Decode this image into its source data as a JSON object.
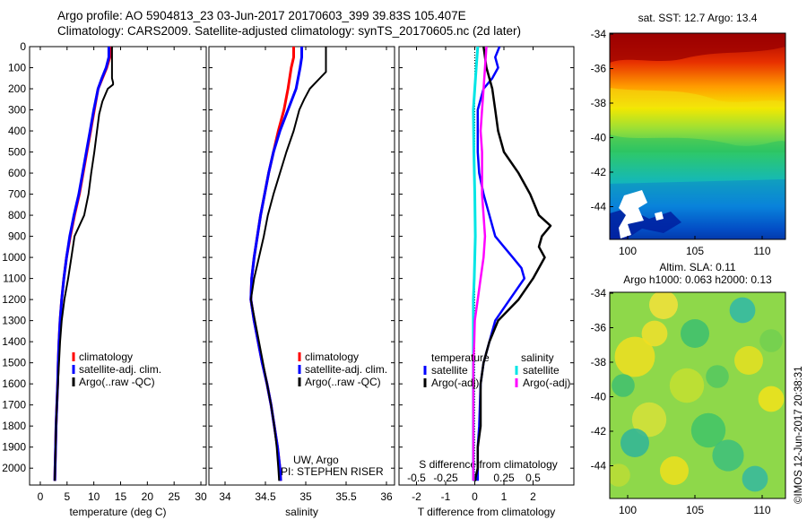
{
  "header": {
    "line1": "Argo profile: AO 5904813_23 03-Jun-2017 20170603_399 39.83S 105.407E",
    "line2": "Climatology: CARS2009. Satellite-adjusted climatology: synTS_20170605.nc (2d later)"
  },
  "colors": {
    "climatology": "#ff0000",
    "satellite": "#0000ff",
    "argo": "#000000",
    "sat_salinity": "#00e5e5",
    "argo_salinity": "#ff00ff"
  },
  "legend_labels": [
    "climatology",
    "satellite-adj. clim.",
    "Argo(..raw -QC)"
  ],
  "diff_legend": {
    "temp_title": "temperature",
    "sal_title": "salinity",
    "temp_items": [
      "satellite",
      "Argo(-adj)"
    ],
    "sal_items": [
      "satellite",
      "Argo(-adj)"
    ]
  },
  "credits": {
    "line1": "UW, Argo",
    "line2": "PI: STEPHEN RISER"
  },
  "map_sst": {
    "title": "sat. SST: 12.7 Argo: 13.4"
  },
  "map_sla": {
    "title1": "Altim. SLA: 0.11",
    "title2": "Argo h1000: 0.063 h2000: 0.13"
  },
  "stamp": "©IMOS 12-Jun-2017 20:38:31",
  "chart_data": [
    {
      "type": "line",
      "id": "temperature",
      "xlabel": "temperature (deg C)",
      "ylabel": "",
      "xlim": [
        -2,
        31
      ],
      "ylim": [
        2080,
        0
      ],
      "xticks": [
        0,
        5,
        10,
        15,
        20,
        25,
        30
      ],
      "yticks": [
        0,
        100,
        200,
        300,
        400,
        500,
        600,
        700,
        800,
        900,
        1000,
        1100,
        1200,
        1300,
        1400,
        1500,
        1600,
        1700,
        1800,
        1900,
        2000
      ],
      "series": [
        {
          "name": "climatology",
          "points": [
            [
              13.0,
              0
            ],
            [
              13.0,
              50
            ],
            [
              12.4,
              100
            ],
            [
              11.6,
              150
            ],
            [
              10.8,
              200
            ],
            [
              10.1,
              300
            ],
            [
              9.4,
              400
            ],
            [
              8.7,
              500
            ],
            [
              8.0,
              600
            ],
            [
              7.3,
              700
            ],
            [
              6.4,
              800
            ],
            [
              5.6,
              900
            ],
            [
              4.9,
              1000
            ],
            [
              4.4,
              1100
            ],
            [
              4.0,
              1200
            ],
            [
              3.7,
              1300
            ],
            [
              3.5,
              1400
            ],
            [
              3.35,
              1500
            ],
            [
              3.25,
              1600
            ],
            [
              3.1,
              1700
            ],
            [
              2.95,
              1800
            ],
            [
              2.85,
              1900
            ],
            [
              2.75,
              2000
            ],
            [
              2.7,
              2060
            ]
          ]
        },
        {
          "name": "satellite-adj. clim.",
          "points": [
            [
              12.8,
              0
            ],
            [
              12.8,
              50
            ],
            [
              12.3,
              100
            ],
            [
              11.5,
              150
            ],
            [
              10.8,
              200
            ],
            [
              10.0,
              300
            ],
            [
              9.3,
              400
            ],
            [
              8.6,
              500
            ],
            [
              7.9,
              600
            ],
            [
              7.2,
              700
            ],
            [
              6.3,
              800
            ],
            [
              5.5,
              900
            ],
            [
              4.9,
              1000
            ],
            [
              4.4,
              1100
            ],
            [
              4.0,
              1200
            ],
            [
              3.7,
              1300
            ],
            [
              3.5,
              1400
            ],
            [
              3.35,
              1500
            ],
            [
              3.25,
              1600
            ],
            [
              3.1,
              1700
            ],
            [
              2.95,
              1800
            ],
            [
              2.85,
              1900
            ],
            [
              2.75,
              2000
            ],
            [
              2.7,
              2060
            ]
          ]
        },
        {
          "name": "Argo(..raw -QC)",
          "points": [
            [
              13.4,
              0
            ],
            [
              13.4,
              150
            ],
            [
              13.6,
              170
            ],
            [
              13.6,
              180
            ],
            [
              12.6,
              200
            ],
            [
              11.6,
              260
            ],
            [
              11.0,
              320
            ],
            [
              10.6,
              400
            ],
            [
              10.1,
              500
            ],
            [
              9.5,
              600
            ],
            [
              9.0,
              700
            ],
            [
              8.2,
              800
            ],
            [
              7.3,
              850
            ],
            [
              6.4,
              900
            ],
            [
              5.8,
              1000
            ],
            [
              5.2,
              1100
            ],
            [
              4.5,
              1200
            ],
            [
              4.0,
              1300
            ],
            [
              3.7,
              1400
            ],
            [
              3.5,
              1500
            ],
            [
              3.3,
              1600
            ],
            [
              3.1,
              1700
            ],
            [
              2.95,
              1800
            ],
            [
              2.85,
              1900
            ],
            [
              2.75,
              2000
            ],
            [
              2.7,
              2060
            ]
          ]
        }
      ]
    },
    {
      "type": "line",
      "id": "salinity",
      "xlabel": "salinity",
      "ylabel": "",
      "xlim": [
        33.8,
        36.1
      ],
      "xticks": [
        34,
        34.5,
        35,
        35.5,
        36
      ],
      "series": [
        {
          "name": "climatology",
          "points": [
            [
              34.85,
              0
            ],
            [
              34.85,
              50
            ],
            [
              34.82,
              100
            ],
            [
              34.78,
              200
            ],
            [
              34.73,
              300
            ],
            [
              34.66,
              400
            ],
            [
              34.6,
              500
            ],
            [
              34.54,
              600
            ],
            [
              34.49,
              700
            ],
            [
              34.44,
              800
            ],
            [
              34.4,
              900
            ],
            [
              34.36,
              1000
            ],
            [
              34.33,
              1100
            ],
            [
              34.32,
              1200
            ],
            [
              34.36,
              1300
            ],
            [
              34.41,
              1400
            ],
            [
              34.46,
              1500
            ],
            [
              34.52,
              1600
            ],
            [
              34.57,
              1700
            ],
            [
              34.61,
              1800
            ],
            [
              34.65,
              1900
            ],
            [
              34.68,
              2000
            ],
            [
              34.69,
              2060
            ]
          ]
        },
        {
          "name": "satellite-adj. clim.",
          "points": [
            [
              34.95,
              0
            ],
            [
              34.95,
              50
            ],
            [
              34.93,
              100
            ],
            [
              34.88,
              200
            ],
            [
              34.78,
              300
            ],
            [
              34.68,
              400
            ],
            [
              34.6,
              500
            ],
            [
              34.54,
              600
            ],
            [
              34.49,
              700
            ],
            [
              34.44,
              800
            ],
            [
              34.4,
              900
            ],
            [
              34.36,
              1000
            ],
            [
              34.33,
              1100
            ],
            [
              34.32,
              1200
            ],
            [
              34.36,
              1300
            ],
            [
              34.41,
              1400
            ],
            [
              34.46,
              1500
            ],
            [
              34.52,
              1600
            ],
            [
              34.57,
              1700
            ],
            [
              34.61,
              1800
            ],
            [
              34.65,
              1900
            ],
            [
              34.68,
              2000
            ],
            [
              34.69,
              2060
            ]
          ]
        },
        {
          "name": "Argo(..raw -QC)",
          "points": [
            [
              35.25,
              0
            ],
            [
              35.25,
              120
            ],
            [
              35.15,
              160
            ],
            [
              35.05,
              200
            ],
            [
              34.98,
              250
            ],
            [
              34.92,
              300
            ],
            [
              34.85,
              400
            ],
            [
              34.76,
              500
            ],
            [
              34.68,
              600
            ],
            [
              34.6,
              700
            ],
            [
              34.53,
              800
            ],
            [
              34.48,
              900
            ],
            [
              34.42,
              1000
            ],
            [
              34.36,
              1100
            ],
            [
              34.32,
              1200
            ],
            [
              34.37,
              1300
            ],
            [
              34.42,
              1400
            ],
            [
              34.47,
              1500
            ],
            [
              34.52,
              1600
            ],
            [
              34.57,
              1700
            ],
            [
              34.61,
              1800
            ],
            [
              34.64,
              1900
            ],
            [
              34.66,
              2000
            ],
            [
              34.67,
              2060
            ]
          ]
        }
      ]
    },
    {
      "type": "line",
      "id": "difference",
      "xlabel": "T difference from climatology",
      "x2label": "S difference from climatology",
      "xlim": [
        -2.6,
        3.4
      ],
      "xticks": [
        -2,
        -1,
        0,
        1,
        2
      ],
      "x2ticks": [
        [
          -0.5,
          "-0.5"
        ],
        [
          -0.25,
          "-0.25"
        ],
        [
          0,
          "0"
        ],
        [
          0.25,
          "0.25"
        ],
        [
          0.5,
          "0.5"
        ]
      ],
      "series": [
        {
          "name": "temperature satellite",
          "points": [
            [
              0.85,
              0
            ],
            [
              0.7,
              50
            ],
            [
              0.8,
              100
            ],
            [
              0.6,
              150
            ],
            [
              0.3,
              200
            ],
            [
              0.2,
              250
            ],
            [
              0.1,
              300
            ],
            [
              0.1,
              500
            ],
            [
              0.15,
              600
            ],
            [
              0.3,
              700
            ],
            [
              0.5,
              800
            ],
            [
              0.7,
              900
            ],
            [
              1.0,
              950
            ],
            [
              1.3,
              1000
            ],
            [
              1.6,
              1050
            ],
            [
              1.7,
              1100
            ],
            [
              1.2,
              1200
            ],
            [
              0.7,
              1300
            ],
            [
              0.5,
              1400
            ],
            [
              0.3,
              1500
            ],
            [
              0.2,
              1600
            ],
            [
              0.15,
              1800
            ],
            [
              0.1,
              1900
            ],
            [
              0.1,
              2000
            ],
            [
              0.1,
              2060
            ]
          ]
        },
        {
          "name": "temperature Argo(-adj)",
          "points": [
            [
              0.3,
              0
            ],
            [
              0.4,
              100
            ],
            [
              0.5,
              150
            ],
            [
              0.6,
              200
            ],
            [
              0.7,
              300
            ],
            [
              0.8,
              400
            ],
            [
              1.0,
              500
            ],
            [
              1.5,
              600
            ],
            [
              1.9,
              700
            ],
            [
              2.2,
              800
            ],
            [
              2.6,
              850
            ],
            [
              2.3,
              900
            ],
            [
              2.2,
              950
            ],
            [
              2.4,
              1000
            ],
            [
              2.0,
              1100
            ],
            [
              1.5,
              1200
            ],
            [
              0.8,
              1300
            ],
            [
              0.5,
              1400
            ],
            [
              0.3,
              1500
            ],
            [
              0.2,
              1600
            ],
            [
              0.2,
              1700
            ],
            [
              0.2,
              1800
            ],
            [
              0.1,
              1900
            ],
            [
              0.1,
              2000
            ],
            [
              0.0,
              2060
            ]
          ]
        },
        {
          "name": "salinity satellite",
          "points": [
            [
              0.1,
              0
            ],
            [
              0.05,
              100
            ],
            [
              0.0,
              200
            ],
            [
              -0.05,
              300
            ],
            [
              -0.03,
              500
            ],
            [
              0.0,
              700
            ],
            [
              0.02,
              900
            ],
            [
              0.0,
              1000
            ],
            [
              -0.02,
              1100
            ],
            [
              -0.05,
              1200
            ],
            [
              -0.05,
              1400
            ],
            [
              -0.05,
              2060
            ]
          ]
        },
        {
          "name": "salinity Argo(-adj)",
          "points": [
            [
              0.4,
              0
            ],
            [
              0.35,
              100
            ],
            [
              0.3,
              200
            ],
            [
              0.25,
              300
            ],
            [
              0.2,
              400
            ],
            [
              0.25,
              500
            ],
            [
              0.25,
              600
            ],
            [
              0.25,
              700
            ],
            [
              0.3,
              800
            ],
            [
              0.35,
              900
            ],
            [
              0.3,
              1000
            ],
            [
              0.2,
              1100
            ],
            [
              0.1,
              1200
            ],
            [
              0.0,
              1300
            ],
            [
              -0.02,
              1400
            ],
            [
              -0.05,
              1500
            ],
            [
              -0.05,
              1700
            ],
            [
              -0.05,
              2060
            ]
          ]
        }
      ]
    }
  ],
  "maps": {
    "lon_ticks": [
      100,
      105,
      110
    ],
    "lat_ticks": [
      -34,
      -36,
      -38,
      -40,
      -42,
      -44
    ]
  }
}
